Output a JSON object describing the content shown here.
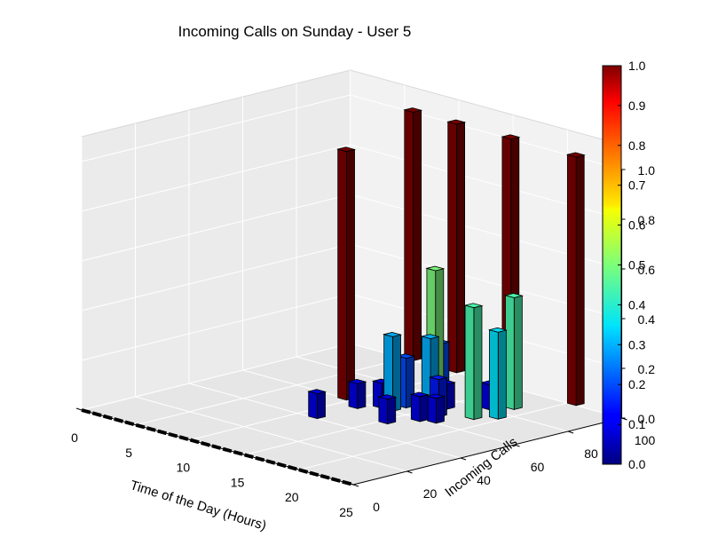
{
  "chart_data": {
    "type": "bar3d",
    "title": "Incoming Calls on Sunday - User 5",
    "xlabel": "Time of the Day (Hours)",
    "ylabel": "Incoming Calls",
    "zlabel": "",
    "x_ticks": [
      "0",
      "5",
      "10",
      "15",
      "20",
      "25"
    ],
    "y_ticks": [
      "0",
      "20",
      "40",
      "60",
      "80",
      "100"
    ],
    "z_ticks": [
      "0.0",
      "0.2",
      "0.4",
      "0.6",
      "0.8",
      "1.0"
    ],
    "xlim": [
      0,
      25
    ],
    "ylim": [
      0,
      100
    ],
    "zlim": [
      0,
      1.0
    ],
    "colormap": "jet",
    "colorbar": {
      "ticks": [
        "0.0",
        "0.1",
        "0.2",
        "0.3",
        "0.4",
        "0.5",
        "0.6",
        "0.7",
        "0.8",
        "0.9",
        "1.0"
      ],
      "range": [
        0,
        1.0
      ]
    },
    "grid": true,
    "bars": [
      {
        "hour": 5,
        "calls": 100,
        "value": 1.0
      },
      {
        "hour": 9,
        "calls": 100,
        "value": 1.0
      },
      {
        "hour": 14,
        "calls": 100,
        "value": 1.0
      },
      {
        "hour": 20,
        "calls": 100,
        "value": 1.0
      },
      {
        "hour": 9,
        "calls": 59,
        "value": 1.0
      },
      {
        "hour": 12,
        "calls": 80,
        "value": 0.5
      },
      {
        "hour": 12,
        "calls": 82,
        "value": 0.2
      },
      {
        "hour": 13,
        "calls": 65,
        "value": 0.2
      },
      {
        "hour": 13,
        "calls": 60,
        "value": 0.3
      },
      {
        "hour": 15,
        "calls": 66,
        "value": 0.3
      },
      {
        "hour": 15,
        "calls": 72,
        "value": 0.1
      },
      {
        "hour": 11,
        "calls": 55,
        "value": 0.1
      },
      {
        "hour": 12,
        "calls": 60,
        "value": 0.1
      },
      {
        "hour": 11,
        "calls": 40,
        "value": 0.1
      },
      {
        "hour": 15,
        "calls": 50,
        "value": 0.1
      },
      {
        "hour": 17,
        "calls": 60,
        "value": 0.1
      },
      {
        "hour": 16,
        "calls": 65,
        "value": 0.15
      },
      {
        "hour": 17,
        "calls": 80,
        "value": 0.1
      },
      {
        "hour": 18,
        "calls": 85,
        "value": 0.45
      },
      {
        "hour": 18,
        "calls": 70,
        "value": 0.45
      },
      {
        "hour": 19,
        "calls": 75,
        "value": 0.35
      },
      {
        "hour": 16,
        "calls": 58,
        "value": 0.1
      }
    ],
    "baseline_bars": {
      "hour_start": 0,
      "hour_end": 24,
      "calls": 0,
      "value": 0.0
    }
  }
}
